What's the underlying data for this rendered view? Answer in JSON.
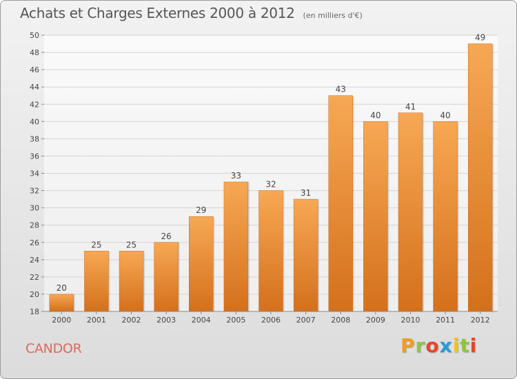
{
  "title": "Achats et Charges Externes 2000 à 2012",
  "subtitle": "(en milliers d'€)",
  "commune": "CANDOR",
  "brand": {
    "letters": [
      "P",
      "r",
      "o",
      "x",
      "i",
      "t",
      "i"
    ],
    "colors": [
      "#f39b1e",
      "#8cc63f",
      "#e8452c",
      "#2a9bd8",
      "#f3c21e",
      "#8cc63f",
      "#e8452c"
    ]
  },
  "chart_data": {
    "type": "bar",
    "categories": [
      "2000",
      "2001",
      "2002",
      "2003",
      "2004",
      "2005",
      "2006",
      "2007",
      "2008",
      "2009",
      "2010",
      "2011",
      "2012"
    ],
    "values": [
      20,
      25,
      25,
      26,
      29,
      33,
      32,
      31,
      43,
      40,
      41,
      40,
      49
    ],
    "data_labels": [
      "20",
      "25",
      "25",
      "26",
      "29",
      "33",
      "32",
      "31",
      "43",
      "40",
      "41",
      "40",
      "49"
    ],
    "ylim": [
      18,
      50
    ],
    "yticks": [
      18,
      20,
      22,
      24,
      26,
      28,
      30,
      32,
      34,
      36,
      38,
      40,
      42,
      44,
      46,
      48,
      50
    ],
    "grid": true,
    "bar_color": "#f0922e"
  }
}
